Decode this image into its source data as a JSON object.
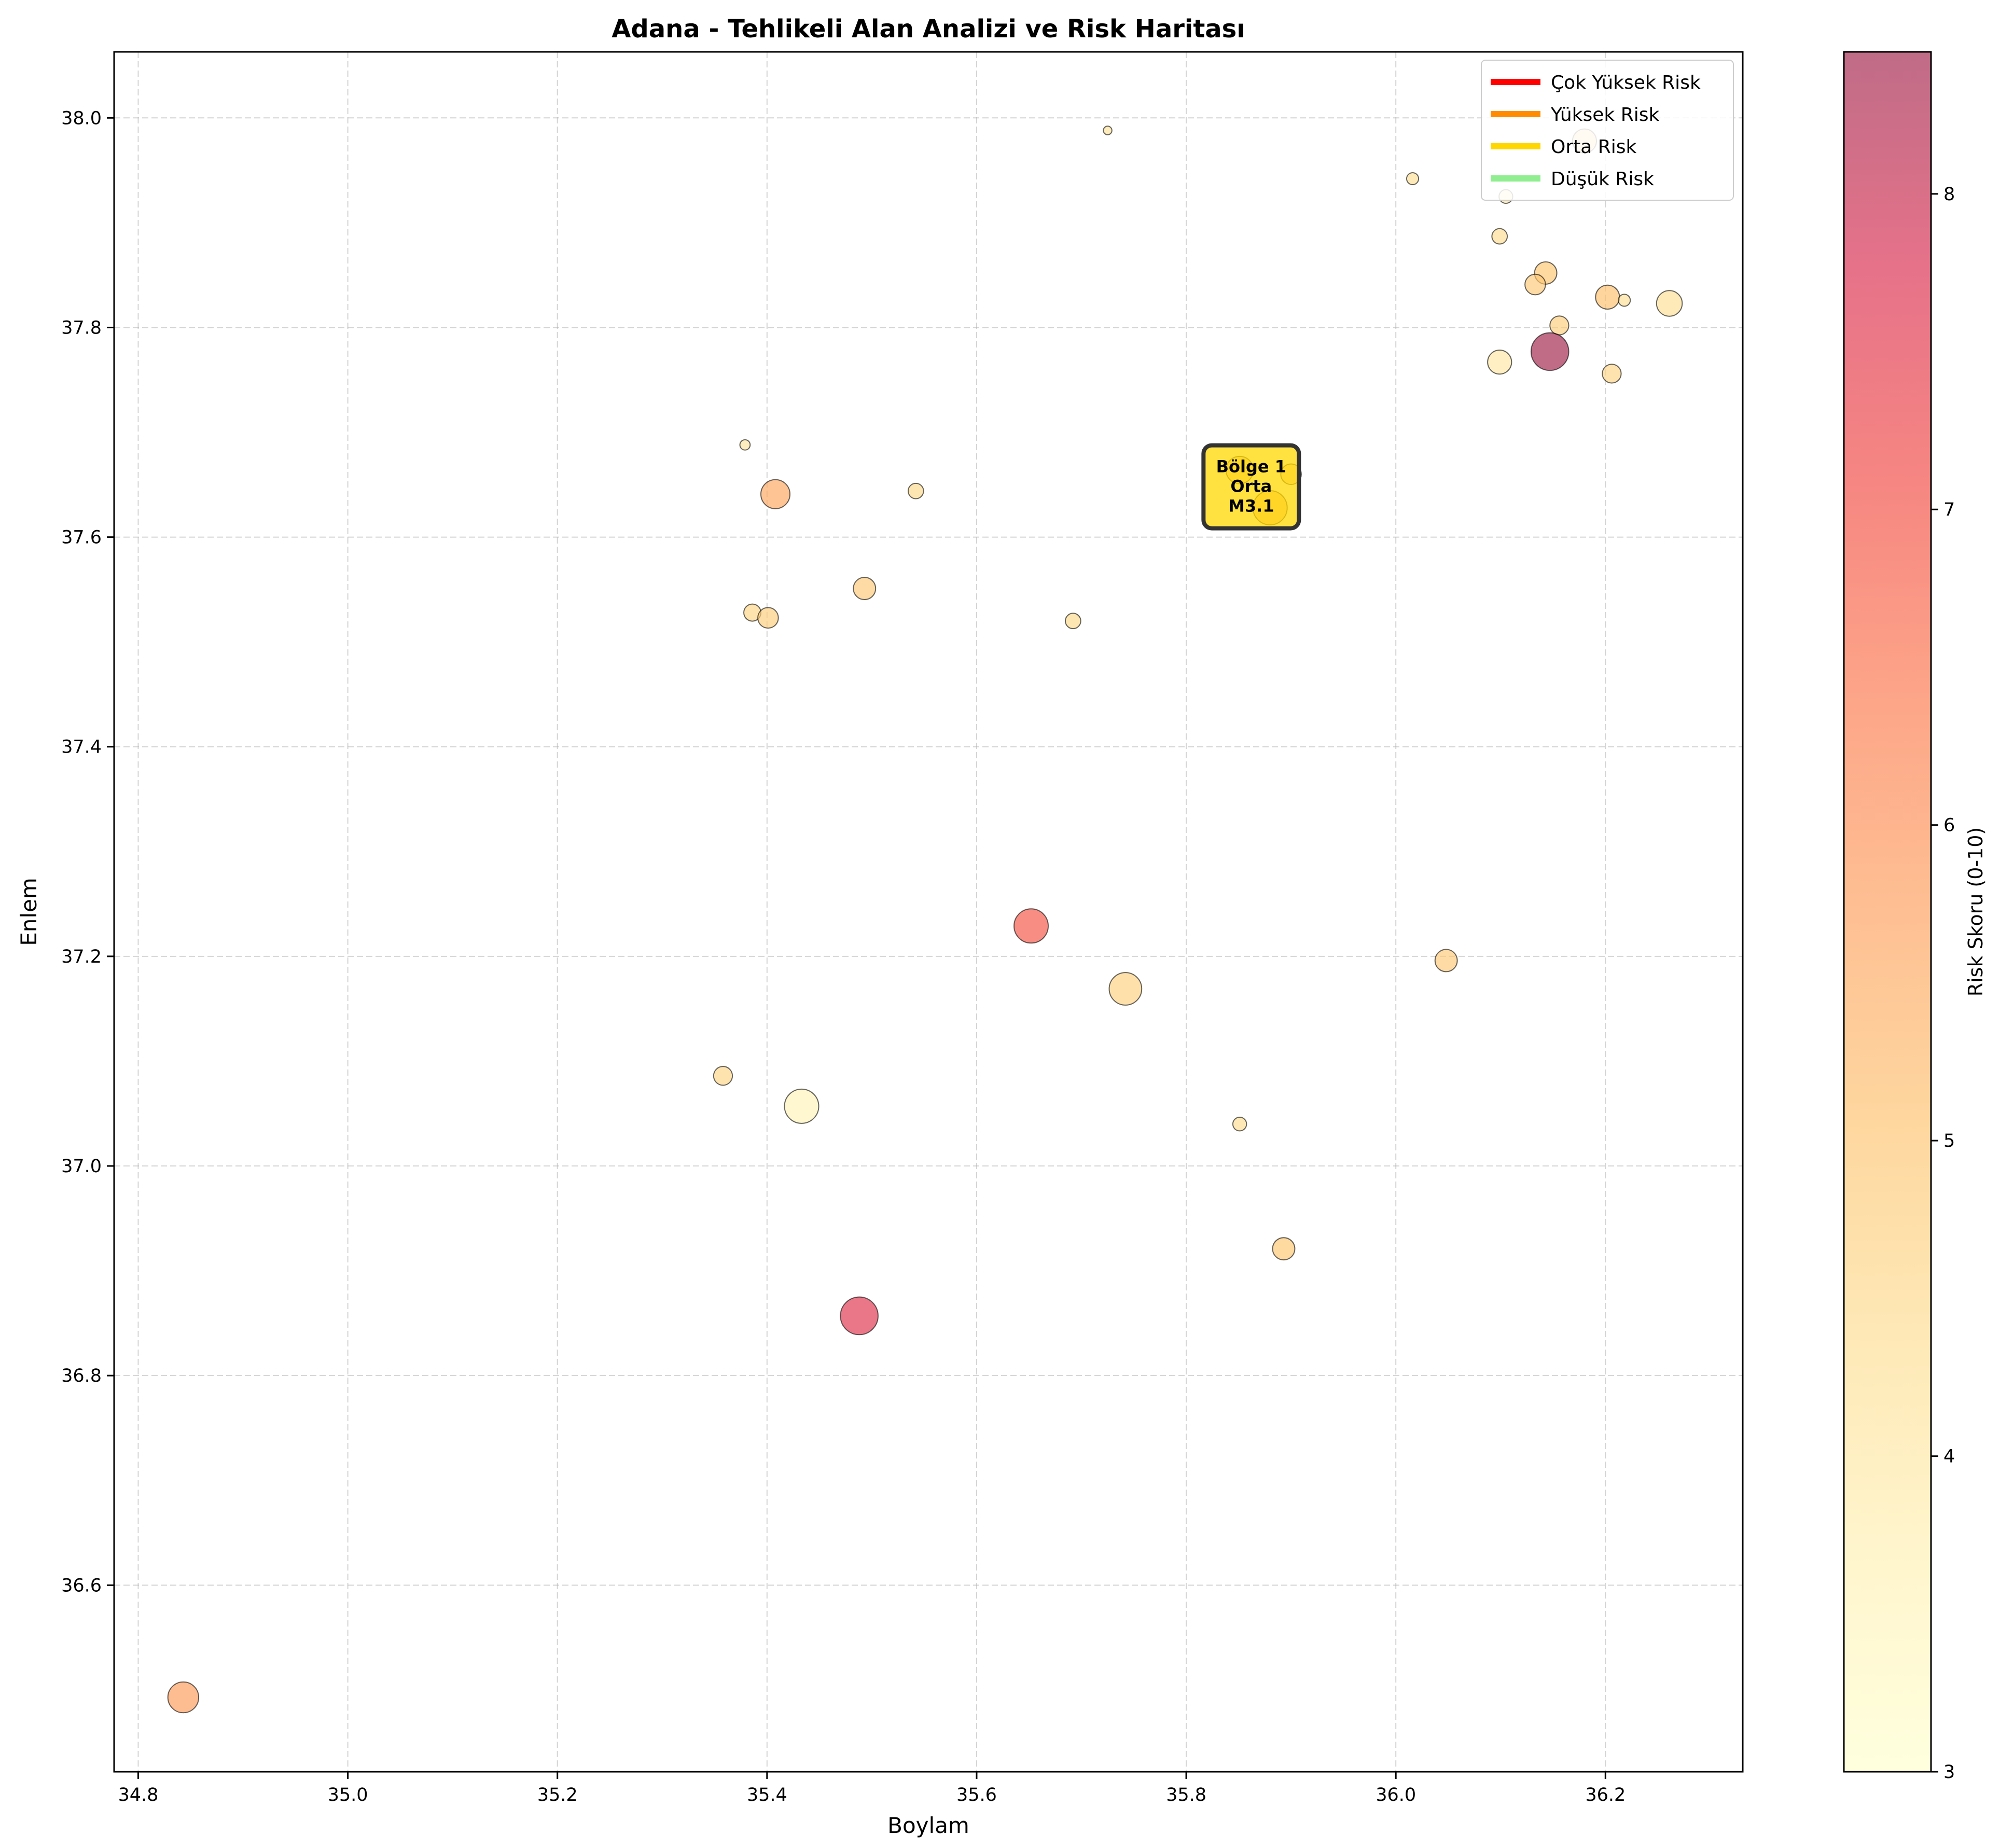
{
  "chart_data": {
    "type": "scatter",
    "title": "Adana - Tehlikeli Alan Analizi ve Risk Haritası",
    "xlabel": "Boylam",
    "ylabel": "Enlem",
    "xlim": [
      34.777,
      36.331
    ],
    "ylim": [
      36.422,
      38.063
    ],
    "xticks": [
      "34.8",
      "35.0",
      "35.2",
      "35.4",
      "35.6",
      "35.8",
      "36.0",
      "36.2"
    ],
    "yticks": [
      "36.6",
      "36.8",
      "37.0",
      "37.2",
      "37.4",
      "37.6",
      "37.8",
      "38.0"
    ],
    "grid": true,
    "colorbar": {
      "label": "Risk Skoru (0-10)",
      "range": [
        3,
        8.45
      ],
      "ticks": [
        "3",
        "4",
        "5",
        "6",
        "7",
        "8"
      ],
      "colormap": [
        "#ffffcc",
        "#fff0b2",
        "#fedd90",
        "#fec26b",
        "#fd9d58",
        "#fc7548",
        "#f1453e",
        "#d8264a",
        "#9e1d47"
      ]
    },
    "legend": {
      "placement": "top-right",
      "entries": [
        {
          "label": "Çok Yüksek Risk",
          "color": "#ff0000"
        },
        {
          "label": "Yüksek Risk",
          "color": "#ff8c00"
        },
        {
          "label": "Orta Risk",
          "color": "#ffd700"
        },
        {
          "label": "Düşük Risk",
          "color": "#90ee90"
        }
      ]
    },
    "annotation": {
      "lines": [
        "Bölge 1",
        "Orta",
        "M3.1"
      ],
      "x": 35.862,
      "y": 37.648,
      "box_color": "#ffd700"
    },
    "points": [
      {
        "x": 34.843,
        "y": 36.493,
        "risk": 5.8,
        "size": 9
      },
      {
        "x": 35.488,
        "y": 36.857,
        "risk": 7.6,
        "size": 11
      },
      {
        "x": 35.652,
        "y": 37.229,
        "risk": 6.9,
        "size": 10
      },
      {
        "x": 35.433,
        "y": 37.057,
        "risk": 3.6,
        "size": 10
      },
      {
        "x": 35.742,
        "y": 37.169,
        "risk": 4.7,
        "size": 9.5
      },
      {
        "x": 35.358,
        "y": 37.086,
        "risk": 4.6,
        "size": 5.5
      },
      {
        "x": 35.893,
        "y": 36.921,
        "risk": 5.0,
        "size": 6.5
      },
      {
        "x": 35.851,
        "y": 37.04,
        "risk": 4.4,
        "size": 4
      },
      {
        "x": 36.048,
        "y": 37.196,
        "risk": 4.9,
        "size": 6.5
      },
      {
        "x": 35.408,
        "y": 37.641,
        "risk": 5.6,
        "size": 8.5
      },
      {
        "x": 35.379,
        "y": 37.688,
        "risk": 4.1,
        "size": 3
      },
      {
        "x": 35.542,
        "y": 37.644,
        "risk": 4.5,
        "size": 4.5
      },
      {
        "x": 35.493,
        "y": 37.551,
        "risk": 4.9,
        "size": 6.5
      },
      {
        "x": 35.386,
        "y": 37.528,
        "risk": 4.6,
        "size": 5
      },
      {
        "x": 35.401,
        "y": 37.523,
        "risk": 4.8,
        "size": 6
      },
      {
        "x": 35.692,
        "y": 37.52,
        "risk": 4.5,
        "size": 4.5
      },
      {
        "x": 35.725,
        "y": 37.988,
        "risk": 4.2,
        "size": 2.5
      },
      {
        "x": 36.016,
        "y": 37.942,
        "risk": 4.3,
        "size": 3.5
      },
      {
        "x": 36.105,
        "y": 37.925,
        "risk": 4.1,
        "size": 4
      },
      {
        "x": 36.099,
        "y": 37.887,
        "risk": 4.4,
        "size": 4.5
      },
      {
        "x": 36.143,
        "y": 37.852,
        "risk": 5.0,
        "size": 6.5
      },
      {
        "x": 36.133,
        "y": 37.841,
        "risk": 4.9,
        "size": 6
      },
      {
        "x": 36.202,
        "y": 37.829,
        "risk": 5.1,
        "size": 7
      },
      {
        "x": 36.218,
        "y": 37.826,
        "risk": 4.3,
        "size": 3.5
      },
      {
        "x": 36.261,
        "y": 37.823,
        "risk": 4.3,
        "size": 7.5
      },
      {
        "x": 36.156,
        "y": 37.802,
        "risk": 4.8,
        "size": 5.5
      },
      {
        "x": 36.147,
        "y": 37.777,
        "risk": 8.45,
        "size": 11
      },
      {
        "x": 36.099,
        "y": 37.767,
        "risk": 4.0,
        "size": 7
      },
      {
        "x": 36.206,
        "y": 37.756,
        "risk": 4.6,
        "size": 5.5
      },
      {
        "x": 36.18,
        "y": 37.978,
        "risk": 4.6,
        "size": 7
      },
      {
        "x": 35.88,
        "y": 37.628,
        "risk": 5.2,
        "size": 10
      },
      {
        "x": 35.851,
        "y": 37.664,
        "risk": 4.9,
        "size": 8
      },
      {
        "x": 35.9,
        "y": 37.66,
        "risk": 4.7,
        "size": 6
      }
    ]
  }
}
